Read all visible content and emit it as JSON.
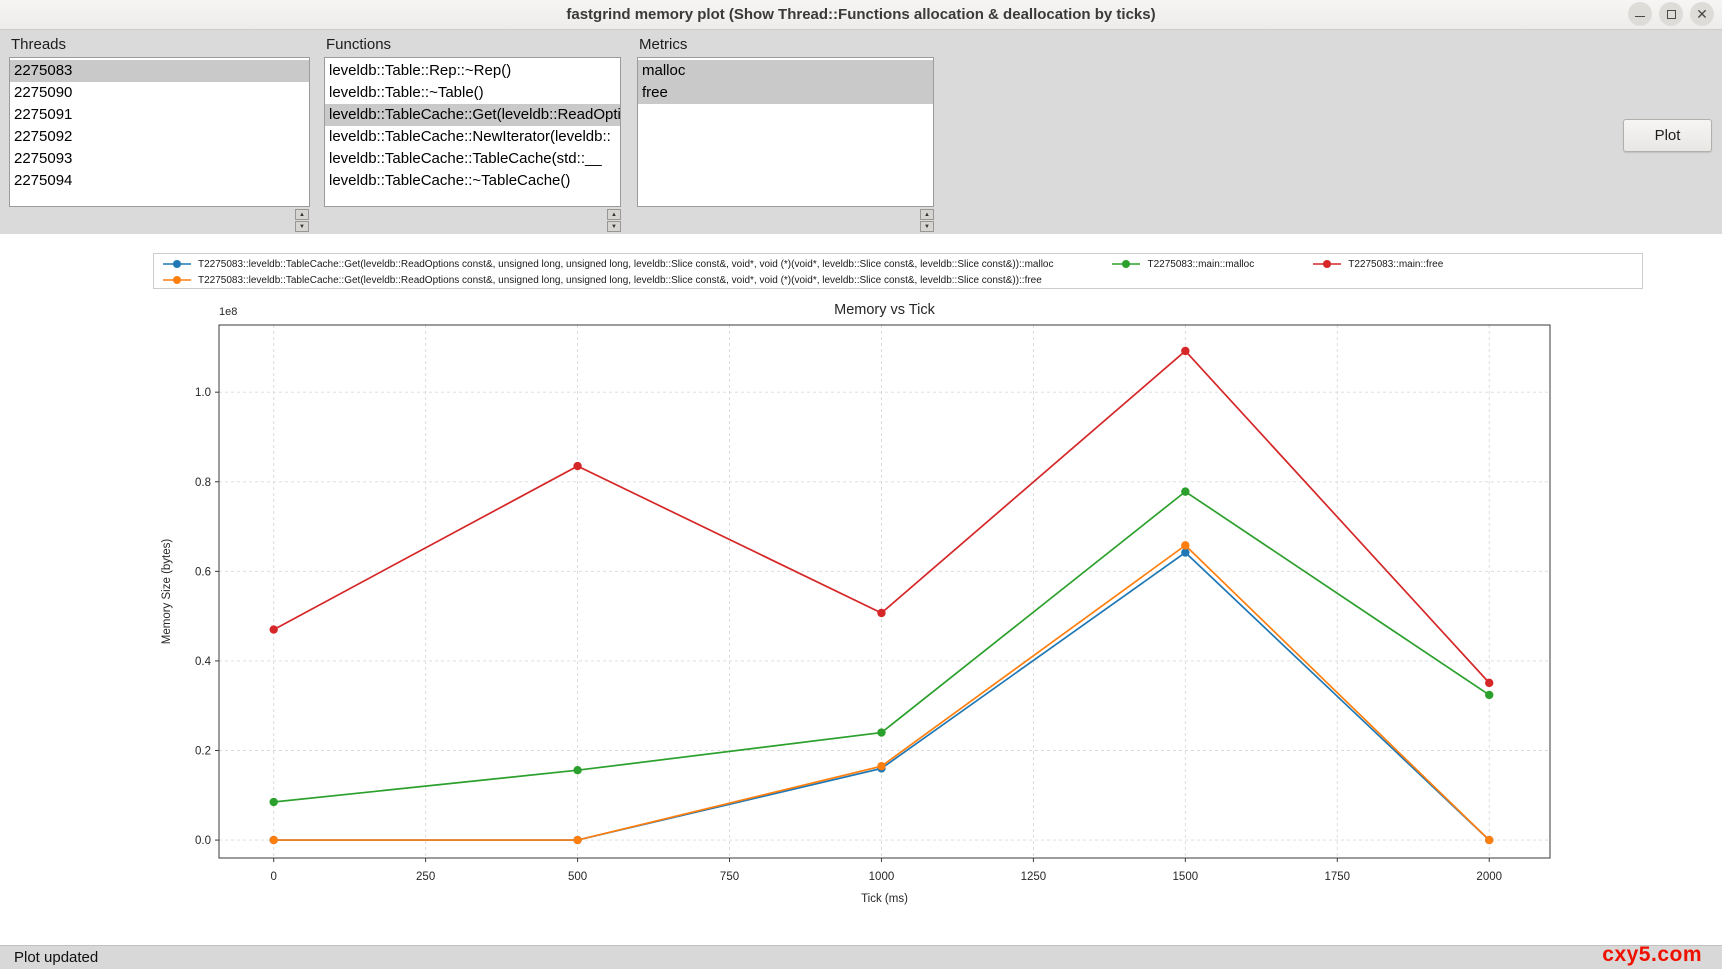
{
  "window": {
    "title": "fastgrind memory plot (Show Thread::Functions allocation & deallocation by ticks)"
  },
  "panel": {
    "threads": {
      "label": "Threads",
      "items": [
        "2275083",
        "2275090",
        "2275091",
        "2275092",
        "2275093",
        "2275094"
      ],
      "selected_indices": [
        0
      ]
    },
    "functions": {
      "label": "Functions",
      "items": [
        "leveldb::Table::Rep::~Rep()",
        "leveldb::Table::~Table()",
        "leveldb::TableCache::Get(leveldb::ReadOptions const&, unsigned long, unsigned long, leveldb::Slice const&, void*, void (*)(void*, leveldb::Slice const&, leveldb::Slice const&))",
        "leveldb::TableCache::NewIterator(leveldb::",
        "leveldb::TableCache::TableCache(std::__",
        "leveldb::TableCache::~TableCache()"
      ],
      "selected_indices": [
        2
      ]
    },
    "metrics": {
      "label": "Metrics",
      "items": [
        "malloc",
        "free"
      ],
      "selected_indices": [
        0,
        1
      ]
    },
    "plot_button_label": "Plot"
  },
  "chart_data": {
    "type": "line",
    "title": "Memory vs Tick",
    "xlabel": "Tick (ms)",
    "ylabel": "Memory Size (bytes)",
    "y_offset_text": "1e8",
    "x": [
      0,
      500,
      1000,
      1500,
      2000
    ],
    "series": [
      {
        "name": "T2275083::leveldb::TableCache::Get(leveldb::ReadOptions const&, unsigned long, unsigned long, leveldb::Slice const&, void*, void (*)(void*, leveldb::Slice const&, leveldb::Slice const&))::malloc",
        "color": "#1f77b4",
        "values": [
          0,
          0,
          16000000,
          64200000,
          0
        ]
      },
      {
        "name": "T2275083::leveldb::TableCache::Get(leveldb::ReadOptions const&, unsigned long, unsigned long, leveldb::Slice const&, void*, void (*)(void*, leveldb::Slice const&, leveldb::Slice const&))::free",
        "color": "#ff7f0e",
        "values": [
          0,
          0,
          16500000,
          65800000,
          0
        ]
      },
      {
        "name": "T2275083::main::malloc",
        "color": "#2ca02c",
        "values": [
          8500000,
          15600000,
          24000000,
          77800000,
          32400000
        ]
      },
      {
        "name": "T2275083::main::free",
        "color": "#d62728",
        "values": [
          47000000,
          83500000,
          50700000,
          109200000,
          35100000
        ]
      }
    ],
    "xticks": [
      0,
      250,
      500,
      750,
      1000,
      1250,
      1500,
      1750,
      2000
    ],
    "ytick_values": [
      0,
      20000000,
      40000000,
      60000000,
      80000000,
      100000000
    ],
    "ytick_labels": [
      "0.0",
      "0.2",
      "0.4",
      "0.6",
      "0.8",
      "1.0"
    ],
    "xlim": [
      -90,
      2100
    ],
    "ylim": [
      -4000000,
      115000000
    ],
    "grid": true,
    "legend_position": "above-plot"
  },
  "status_bar": {
    "text": "Plot updated"
  },
  "watermark": {
    "text": "cxy5.com",
    "color": "#ee1100"
  }
}
